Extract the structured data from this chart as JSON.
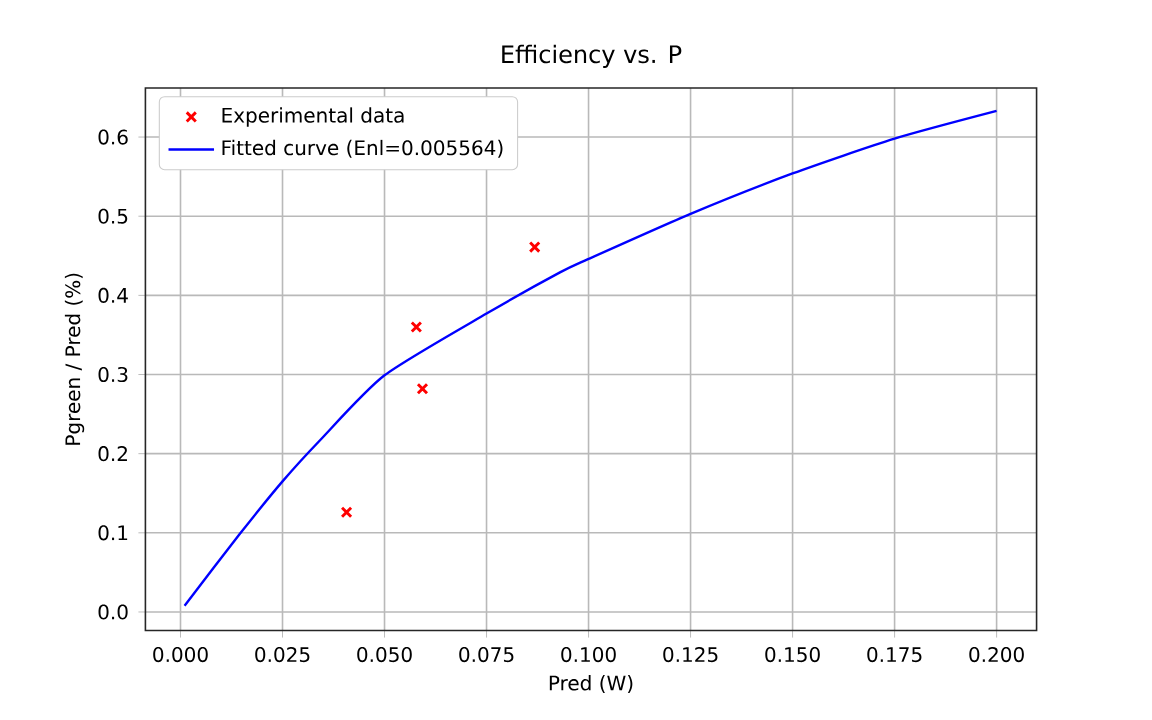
{
  "chart_data": {
    "type": "scatter",
    "title": "Efficiency vs. P",
    "xlabel": "Pred (W)",
    "ylabel": "Pgreen / Pred (%)",
    "xlim": [
      -0.0086,
      0.2098
    ],
    "ylim": [
      -0.0235,
      0.662
    ],
    "xticks": [
      {
        "value": 0,
        "label": "0.000"
      },
      {
        "value": 0.025,
        "label": "0.025"
      },
      {
        "value": 0.05,
        "label": "0.050"
      },
      {
        "value": 0.075,
        "label": "0.075"
      },
      {
        "value": 0.1,
        "label": "0.100"
      },
      {
        "value": 0.125,
        "label": "0.125"
      },
      {
        "value": 0.15,
        "label": "0.150"
      },
      {
        "value": 0.175,
        "label": "0.175"
      },
      {
        "value": 0.2,
        "label": "0.200"
      }
    ],
    "yticks": [
      {
        "value": 0,
        "label": "0.0"
      },
      {
        "value": 0.1,
        "label": "0.1"
      },
      {
        "value": 0.2,
        "label": "0.2"
      },
      {
        "value": 0.3,
        "label": "0.3"
      },
      {
        "value": 0.4,
        "label": "0.4"
      },
      {
        "value": 0.5,
        "label": "0.5"
      },
      {
        "value": 0.6,
        "label": "0.6"
      }
    ],
    "grid": true,
    "legend": "top left",
    "series": [
      {
        "name": "Experimental data",
        "marker": "cross",
        "color": "#ff0000",
        "x": [
          0.0407,
          0.0578,
          0.0593,
          0.0868
        ],
        "values": [
          0.126,
          0.36,
          0.282,
          0.461
        ]
      },
      {
        "name": "Fitted curve (Enl=0.005564)",
        "type": "line",
        "marker": "none",
        "line_style": "solid",
        "color": "#0000ff",
        "x": [
          0.001,
          0.0146,
          0.025,
          0.0342,
          0.05,
          0.075,
          0.093,
          0.1,
          0.125,
          0.15,
          0.175,
          0.2
        ],
        "values": [
          0.008,
          0.099,
          0.165,
          0.217,
          0.299,
          0.377,
          0.429,
          0.446,
          0.503,
          0.554,
          0.598,
          0.633
        ]
      }
    ]
  }
}
